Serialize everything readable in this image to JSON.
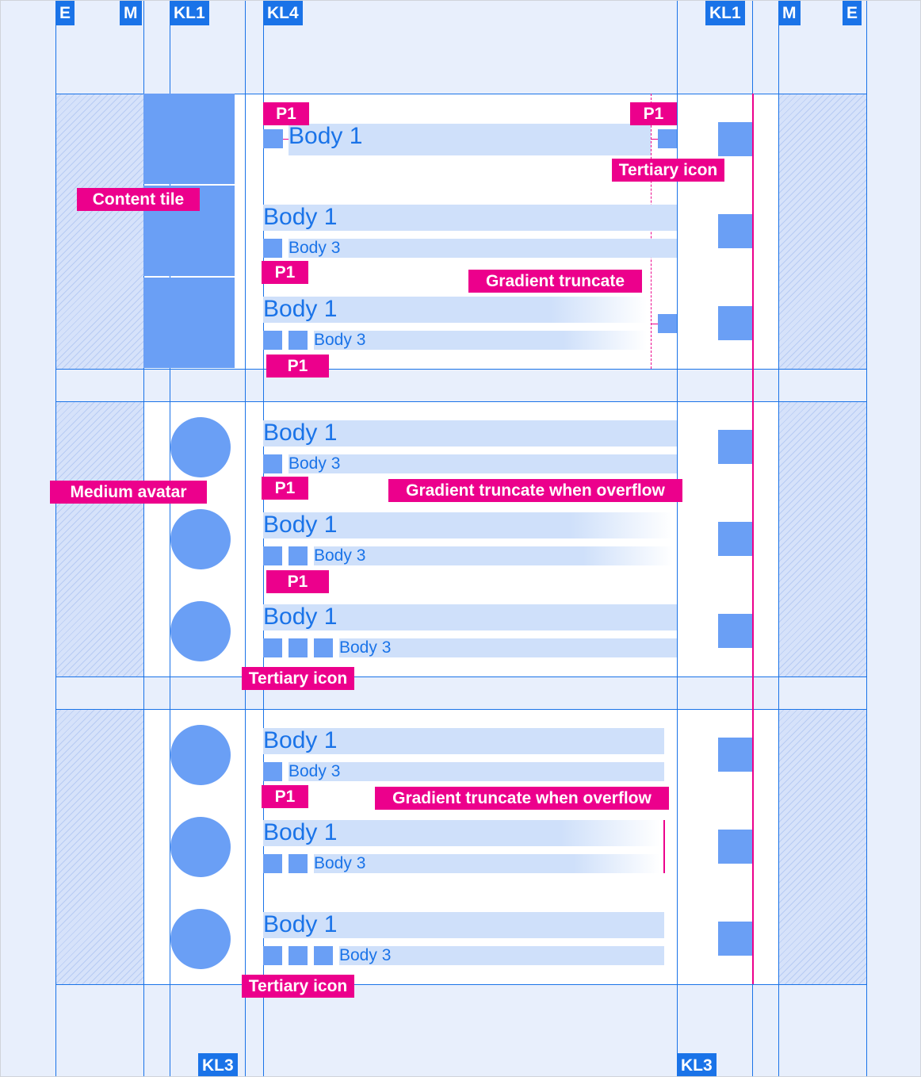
{
  "headers_top": [
    "E",
    "M",
    "KL1",
    "KL4",
    "KL1",
    "M",
    "E"
  ],
  "headers_bottom": [
    "KL3",
    "KL3"
  ],
  "text": {
    "body1": "Body 1",
    "body3": "Body 3"
  },
  "tags": {
    "p1": "P1",
    "tertiary_icon": "Tertiary icon",
    "content_tile": "Content tile",
    "gradient_truncate": "Gradient truncate",
    "medium_avatar": "Medium avatar",
    "gradient_truncate_overflow": "Gradient truncate when overflow"
  },
  "colors": {
    "keyline": "#1a73e8",
    "annotation": "#ec008c",
    "placeholder": "#6a9ff5",
    "highlight": "#cfe0fa"
  }
}
